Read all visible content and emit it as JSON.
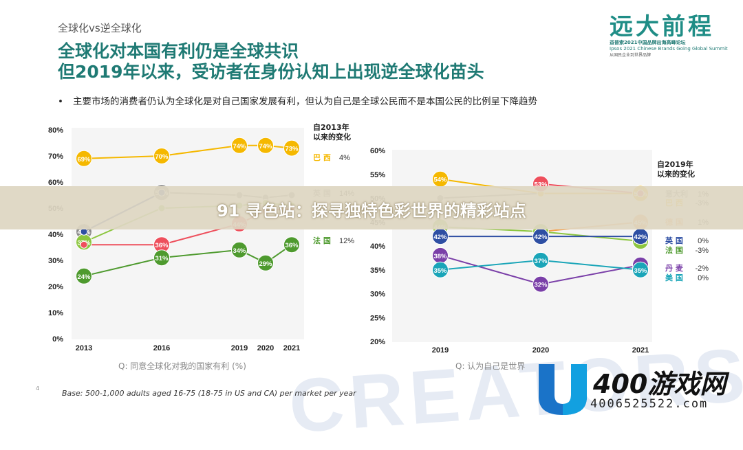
{
  "header": {
    "kicker": "全球化vs逆全球化",
    "title_line1": "全球化对本国有利仍是全球共识",
    "title_line2": "但2019年以来，受访者在身份认知上出现逆全球化苗头",
    "bullet": "主要市场的消费者仍认为全球化是对自己国家发展有利，但认为自己是全球公民而不是本国公民的比例呈下降趋势"
  },
  "logo": {
    "title": "远大前程",
    "sub1": "益普索2021中国品牌出海高峰论坛",
    "sub2": "Ipsos 2021 Chinese Brands Going Global Summit",
    "sub3": "从国民企业到世界品牌"
  },
  "banner": {
    "text": "91 寻色站：探寻独特色彩世界的精彩站点"
  },
  "footnote": "Base: 500-1,000 adults aged 16-75 (18-75 in US and CA) per market per year",
  "page_number": "4",
  "watermark": {
    "brand_name": "400游戏网",
    "phone": "4006525522.com",
    "bg_text": "CREATORS"
  },
  "colors": {
    "yellow": "#f5b800",
    "gray": "#8c8c8c",
    "green_light": "#8cc63f",
    "blue_dark": "#2e4fa3",
    "red": "#ee4f5c",
    "green_dark": "#4e9a2e",
    "orange": "#f5a04a",
    "purple": "#7a3fa8",
    "teal": "#1aa5b8",
    "headline": "#1f7a74"
  },
  "chart_data": [
    {
      "type": "line",
      "question": "Q:  同意全球化对我的国家有利  (%)",
      "x": [
        "2013",
        "2016",
        "2019",
        "2020",
        "2021"
      ],
      "yticks": [
        "0%",
        "10%",
        "20%",
        "30%",
        "40%",
        "50%",
        "60%",
        "70%",
        "80%"
      ],
      "ylim": [
        0,
        80
      ],
      "legend_title": "自2013年\n以来的变化",
      "series": [
        {
          "name": "巴 西",
          "change": "4%",
          "color_key": "yellow",
          "values": [
            69,
            70,
            74,
            74,
            73
          ],
          "labels": [
            "69%",
            "70%",
            "74%",
            "74%",
            "73%"
          ]
        },
        {
          "name": "英 国",
          "change": "14%",
          "color_key": "gray",
          "values": [
            41,
            56,
            55,
            54,
            55
          ],
          "labels": [
            "41%",
            "56%",
            null,
            null,
            null
          ]
        },
        {
          "name": "",
          "change": "",
          "color_key": "green_light",
          "values": [
            37,
            50,
            51,
            52,
            51
          ],
          "labels": [
            "37%",
            null,
            null,
            null,
            null
          ]
        },
        {
          "name": "",
          "change": "",
          "color_key": "blue_dark",
          "values": [
            41,
            56,
            null,
            null,
            null
          ],
          "labels": [
            null,
            null,
            null,
            null,
            null
          ]
        },
        {
          "name": "",
          "change": "",
          "color_key": "red",
          "values": [
            36,
            36,
            44,
            49,
            50
          ],
          "labels": [
            null,
            "36%",
            "44%",
            null,
            null
          ]
        },
        {
          "name": "法 国",
          "change": "12%",
          "color_key": "green_dark",
          "values": [
            24,
            31,
            34,
            29,
            36
          ],
          "labels": [
            "24%",
            "31%",
            "34%",
            "29%",
            "36%"
          ]
        }
      ]
    },
    {
      "type": "line",
      "question": "Q:  认为自己是世界",
      "x": [
        "2019",
        "2020",
        "2021"
      ],
      "yticks": [
        "20%",
        "25%",
        "30%",
        "35%",
        "40%",
        "45%",
        "50%",
        "55%",
        "60%"
      ],
      "ylim": [
        20,
        60
      ],
      "legend_title": "自2019年\n以来的变化",
      "series": [
        {
          "name": "意大利",
          "change": "1%",
          "color_key": "gray",
          "values": [
            50,
            51,
            51
          ],
          "labels": [
            null,
            null,
            null
          ]
        },
        {
          "name": "巴 西",
          "change": "-3%",
          "color_key": "yellow",
          "values": [
            54,
            51,
            51
          ],
          "labels": [
            "54%",
            null,
            "51%"
          ]
        },
        {
          "name": "德 国",
          "change": "1%",
          "color_key": "orange",
          "values": [
            null,
            43,
            45
          ],
          "labels": [
            null,
            null,
            "45%"
          ]
        },
        {
          "name": "",
          "change": "",
          "color_key": "red",
          "values": [
            null,
            53,
            51
          ],
          "labels": [
            null,
            "53%",
            null
          ]
        },
        {
          "name": "",
          "change": "",
          "color_key": "green_light",
          "values": [
            44,
            43,
            41
          ],
          "labels": [
            "44%",
            "43%",
            "41%"
          ]
        },
        {
          "name": "英 国",
          "change": "0%",
          "color_key": "blue_dark",
          "values": [
            42,
            42,
            42
          ],
          "labels": [
            "42%",
            "42%",
            "42%"
          ]
        },
        {
          "name": "法 国",
          "change": "-3%",
          "color_key": "green_dark",
          "values": [
            null,
            null,
            null
          ],
          "labels": [
            null,
            null,
            null
          ]
        },
        {
          "name": "丹 麦",
          "change": "-2%",
          "color_key": "purple",
          "values": [
            38,
            32,
            36
          ],
          "labels": [
            "38%",
            "32%",
            "36%"
          ]
        },
        {
          "name": "美 国",
          "change": "0%",
          "color_key": "teal",
          "values": [
            35,
            37,
            35
          ],
          "labels": [
            "35%",
            "37%",
            "35%"
          ]
        }
      ]
    }
  ]
}
